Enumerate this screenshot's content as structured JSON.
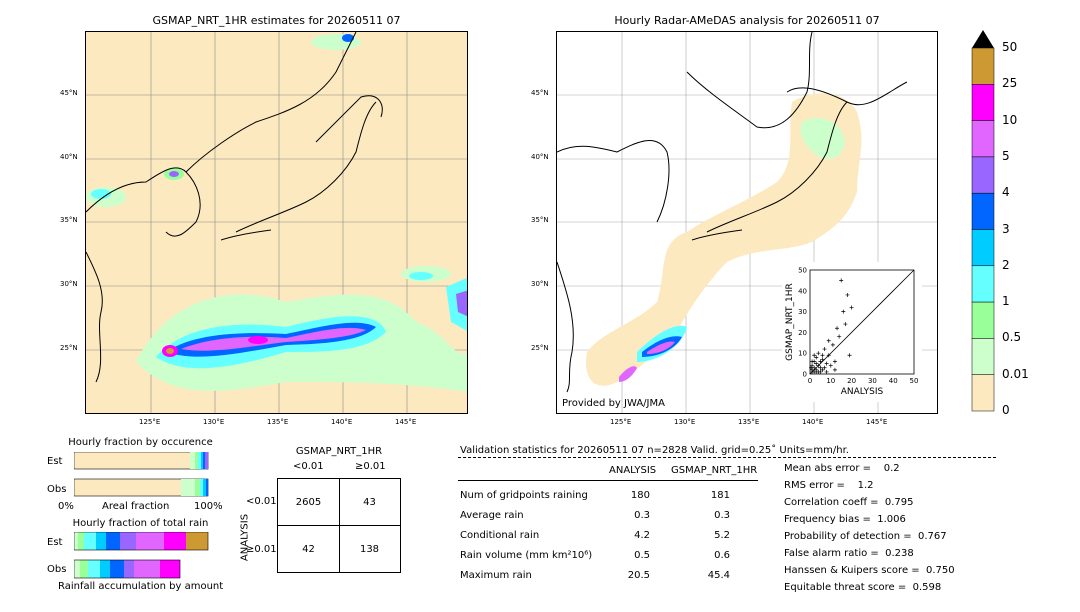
{
  "left_map": {
    "title": "GSMAP_NRT_1HR estimates for 20260511 07",
    "lat_labels": [
      "45°N",
      "40°N",
      "35°N",
      "30°N",
      "25°N"
    ],
    "lon_labels": [
      "125°E",
      "130°E",
      "135°E",
      "140°E",
      "145°E"
    ]
  },
  "right_map": {
    "title": "Hourly Radar-AMeDAS analysis for 20260511 07",
    "lat_labels": [
      "45°N",
      "40°N",
      "35°N",
      "30°N",
      "25°N"
    ],
    "lon_labels": [
      "125°E",
      "130°E",
      "135°E",
      "140°E",
      "145°E"
    ],
    "credit": "Provided by JWA/JMA"
  },
  "colorbar": {
    "labels": [
      "50",
      "25",
      "10",
      "5",
      "4",
      "3",
      "2",
      "1",
      "0.5",
      "0.01",
      "0"
    ],
    "colors": [
      "#cc9933",
      "#ff00ff",
      "#e066ff",
      "#9966ff",
      "#0066ff",
      "#00ccff",
      "#66ffff",
      "#99ff99",
      "#ccffcc",
      "#fde9c0"
    ]
  },
  "occurrence": {
    "title": "Hourly fraction by occurence",
    "row_labels": [
      "Est",
      "Obs"
    ],
    "axis_left": "0%",
    "axis_mid": "Areal fraction",
    "axis_right": "100%"
  },
  "total_rain": {
    "title": "Hourly fraction of total rain",
    "row_labels": [
      "Est",
      "Obs"
    ],
    "footer": "Rainfall accumulation by amount"
  },
  "contingency": {
    "title": "GSMAP_NRT_1HR",
    "col_labels": [
      "<0.01",
      "≥0.01"
    ],
    "row_axis": "ANALYSIS",
    "row_labels": [
      "<0.01",
      "≥0.01"
    ],
    "cells": [
      [
        "2605",
        "43"
      ],
      [
        "42",
        "138"
      ]
    ]
  },
  "validation": {
    "header": "Validation statistics for 20260511 07  n=2828 Valid. grid=0.25˚ Units=mm/hr.",
    "col_analysis": "ANALYSIS",
    "col_gsmap": "GSMAP_NRT_1HR",
    "rows": [
      {
        "label": "Num of gridpoints raining",
        "analysis": "180",
        "gsmap": "181"
      },
      {
        "label": "Average rain",
        "analysis": "0.3",
        "gsmap": "0.3"
      },
      {
        "label": "Conditional rain",
        "analysis": "4.2",
        "gsmap": "5.2"
      },
      {
        "label": "Rain volume (mm km²10⁶)",
        "analysis": "0.5",
        "gsmap": "0.6"
      },
      {
        "label": "Maximum rain",
        "analysis": "20.5",
        "gsmap": "45.4"
      }
    ],
    "scores": [
      "Mean abs error =    0.2",
      "RMS error =    1.2",
      "Correlation coeff =  0.795",
      "Frequency bias =  1.006",
      "Probability of detection =  0.767",
      "False alarm ratio =  0.238",
      "Hanssen & Kuipers score =  0.750",
      "Equitable threat score =  0.598"
    ]
  },
  "chart_data": {
    "type": "scatter",
    "xlabel": "ANALYSIS",
    "ylabel": "GSMAP_NRT_1HR",
    "xlim": [
      0,
      50
    ],
    "ylim": [
      0,
      50
    ],
    "ticks": [
      "0",
      "10",
      "20",
      "30",
      "40",
      "50"
    ],
    "points": [
      [
        1,
        1
      ],
      [
        2,
        1
      ],
      [
        1,
        2
      ],
      [
        3,
        2
      ],
      [
        2,
        3
      ],
      [
        4,
        1
      ],
      [
        1,
        4
      ],
      [
        3,
        5
      ],
      [
        5,
        3
      ],
      [
        2,
        6
      ],
      [
        6,
        2
      ],
      [
        4,
        4
      ],
      [
        5,
        6
      ],
      [
        7,
        3
      ],
      [
        3,
        8
      ],
      [
        8,
        5
      ],
      [
        6,
        9
      ],
      [
        10,
        4
      ],
      [
        4,
        10
      ],
      [
        9,
        9
      ],
      [
        12,
        6
      ],
      [
        7,
        12
      ],
      [
        11,
        14
      ],
      [
        14,
        18
      ],
      [
        13,
        22
      ],
      [
        16,
        30
      ],
      [
        18,
        38
      ],
      [
        15,
        45
      ],
      [
        20,
        32
      ],
      [
        17,
        24
      ],
      [
        19,
        9
      ],
      [
        9,
        16
      ],
      [
        6,
        7
      ],
      [
        2,
        9
      ],
      [
        1,
        6
      ],
      [
        3,
        1
      ],
      [
        5,
        1
      ],
      [
        0.5,
        3
      ],
      [
        8,
        1
      ],
      [
        12,
        2
      ]
    ]
  }
}
